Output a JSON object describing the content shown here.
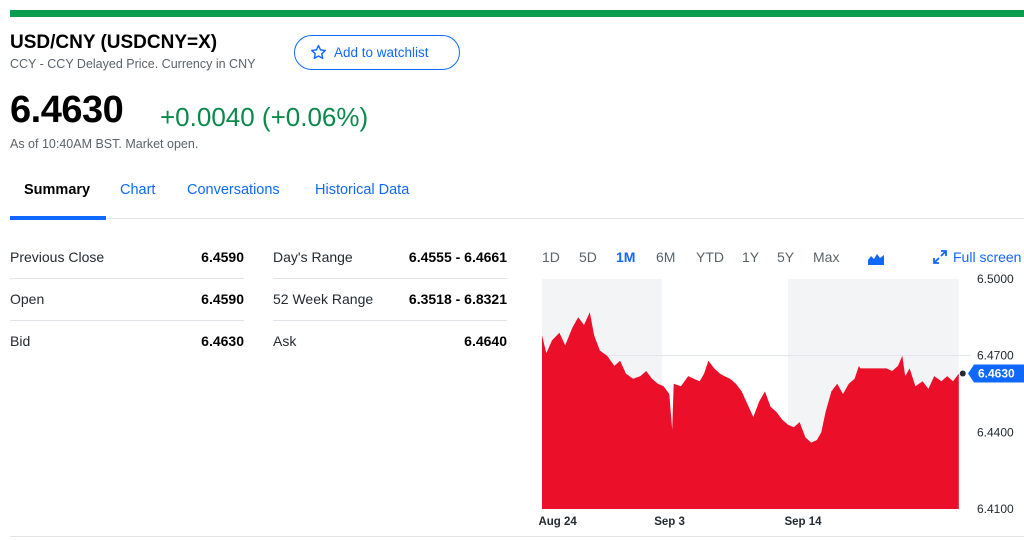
{
  "quote": {
    "name": "USD/CNY (USDCNY=X)",
    "subtitle": "CCY - CCY Delayed Price. Currency in CNY",
    "watchlist_label": "Add to watchlist",
    "price": "6.4630",
    "change": "+0.0040 (+0.06%)",
    "as_of": "As of 10:40AM BST. Market open."
  },
  "colors": {
    "accent": "#0f69ff",
    "positive": "#0a8a4a",
    "chart_fill": "#eb0f29",
    "top_bar": "#0a9d4e"
  },
  "tabs": [
    {
      "label": "Summary",
      "active": true
    },
    {
      "label": "Chart",
      "active": false
    },
    {
      "label": "Conversations",
      "active": false
    },
    {
      "label": "Historical Data",
      "active": false
    }
  ],
  "stats": {
    "col1": [
      {
        "label": "Previous Close",
        "value": "6.4590"
      },
      {
        "label": "Open",
        "value": "6.4590"
      },
      {
        "label": "Bid",
        "value": "6.4630"
      }
    ],
    "col2": [
      {
        "label": "Day's Range",
        "value": "6.4555 - 6.4661"
      },
      {
        "label": "52 Week Range",
        "value": "6.3518 - 6.8321"
      },
      {
        "label": "Ask",
        "value": "6.4640"
      }
    ]
  },
  "chart_controls": {
    "ranges": [
      "1D",
      "5D",
      "1M",
      "6M",
      "YTD",
      "1Y",
      "5Y",
      "Max"
    ],
    "active_range": "1M",
    "chart_type_icon": "mountain-chart-icon",
    "fullscreen_label": "Full screen",
    "fullscreen_icon": "expand-arrows-icon"
  },
  "chart_data": {
    "type": "area",
    "title": "",
    "xlabel": "",
    "ylabel": "",
    "ylim": [
      6.41,
      6.5
    ],
    "y_ticks": [
      "6.5000",
      "6.4700",
      "6.4400",
      "6.4100"
    ],
    "x_ticks": [
      {
        "label": "Aug 24",
        "x": 1
      },
      {
        "label": "Sep 3",
        "x": 9
      },
      {
        "label": "Sep 14",
        "x": 18
      }
    ],
    "current_value": "6.4630",
    "reference_line": 6.47,
    "shaded_x_ranges": [
      [
        0,
        8.3
      ],
      [
        17,
        28.8
      ]
    ],
    "x_range": [
      0,
      29.3
    ],
    "points": [
      [
        0,
        6.478
      ],
      [
        0.3,
        6.471
      ],
      [
        0.7,
        6.476
      ],
      [
        1.2,
        6.479
      ],
      [
        1.6,
        6.474
      ],
      [
        2.1,
        6.481
      ],
      [
        2.5,
        6.485
      ],
      [
        2.9,
        6.482
      ],
      [
        3.3,
        6.487
      ],
      [
        3.6,
        6.478
      ],
      [
        4.0,
        6.472
      ],
      [
        4.5,
        6.47
      ],
      [
        5.0,
        6.466
      ],
      [
        5.4,
        6.468
      ],
      [
        5.8,
        6.463
      ],
      [
        6.3,
        6.461
      ],
      [
        6.8,
        6.462
      ],
      [
        7.2,
        6.464
      ],
      [
        7.6,
        6.461
      ],
      [
        8.0,
        6.459
      ],
      [
        8.4,
        6.458
      ],
      [
        8.8,
        6.455
      ],
      [
        9.0,
        6.441
      ],
      [
        9.1,
        6.459
      ],
      [
        9.6,
        6.458
      ],
      [
        10.1,
        6.462
      ],
      [
        10.5,
        6.461
      ],
      [
        10.9,
        6.46
      ],
      [
        11.2,
        6.463
      ],
      [
        11.5,
        6.468
      ],
      [
        11.9,
        6.465
      ],
      [
        12.3,
        6.463
      ],
      [
        12.6,
        6.462
      ],
      [
        13.0,
        6.461
      ],
      [
        13.4,
        6.459
      ],
      [
        13.8,
        6.456
      ],
      [
        14.2,
        6.451
      ],
      [
        14.6,
        6.446
      ],
      [
        15.0,
        6.452
      ],
      [
        15.4,
        6.456
      ],
      [
        15.8,
        6.45
      ],
      [
        16.2,
        6.448
      ],
      [
        16.6,
        6.445
      ],
      [
        17.0,
        6.443
      ],
      [
        17.4,
        6.442
      ],
      [
        17.8,
        6.444
      ],
      [
        18.2,
        6.438
      ],
      [
        18.6,
        6.436
      ],
      [
        19.0,
        6.437
      ],
      [
        19.3,
        6.44
      ],
      [
        19.6,
        6.448
      ],
      [
        20.0,
        6.456
      ],
      [
        20.4,
        6.459
      ],
      [
        20.8,
        6.455
      ],
      [
        21.2,
        6.459
      ],
      [
        21.6,
        6.461
      ],
      [
        21.9,
        6.466
      ],
      [
        22.0,
        6.465
      ],
      [
        22.6,
        6.465
      ],
      [
        23.2,
        6.465
      ],
      [
        23.8,
        6.465
      ],
      [
        24.2,
        6.464
      ],
      [
        24.6,
        6.466
      ],
      [
        24.9,
        6.47
      ],
      [
        25.1,
        6.462
      ],
      [
        25.4,
        6.465
      ],
      [
        25.8,
        6.458
      ],
      [
        26.3,
        6.46
      ],
      [
        26.7,
        6.457
      ],
      [
        27.1,
        6.462
      ],
      [
        27.6,
        6.46
      ],
      [
        28.0,
        6.462
      ],
      [
        28.4,
        6.46
      ],
      [
        28.8,
        6.463
      ]
    ]
  }
}
